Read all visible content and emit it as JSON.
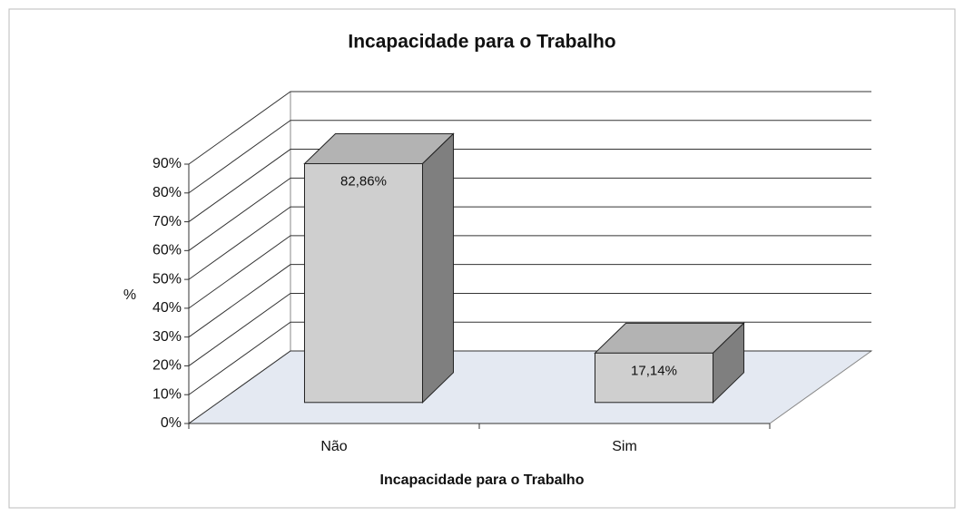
{
  "chart_data": {
    "type": "bar3d",
    "title": "Incapacidade para o Trabalho",
    "x_label": "Incapacidade para o Trabalho",
    "y_label": "%",
    "categories": [
      "Não",
      "Sim"
    ],
    "values": [
      82.86,
      17.14
    ],
    "value_labels": [
      "82,86%",
      "17,14%"
    ],
    "color": "#cfcfcf",
    "ylim": [
      0,
      90
    ],
    "yticks": [
      {
        "value": 0,
        "label": "0%"
      },
      {
        "value": 10,
        "label": "10%"
      },
      {
        "value": 20,
        "label": "20%"
      },
      {
        "value": 30,
        "label": "30%"
      },
      {
        "value": 40,
        "label": "40%"
      },
      {
        "value": 50,
        "label": "50%"
      },
      {
        "value": 60,
        "label": "60%"
      },
      {
        "value": 70,
        "label": "70%"
      },
      {
        "value": 80,
        "label": "80%"
      },
      {
        "value": 90,
        "label": "90%"
      }
    ],
    "grid": true
  }
}
